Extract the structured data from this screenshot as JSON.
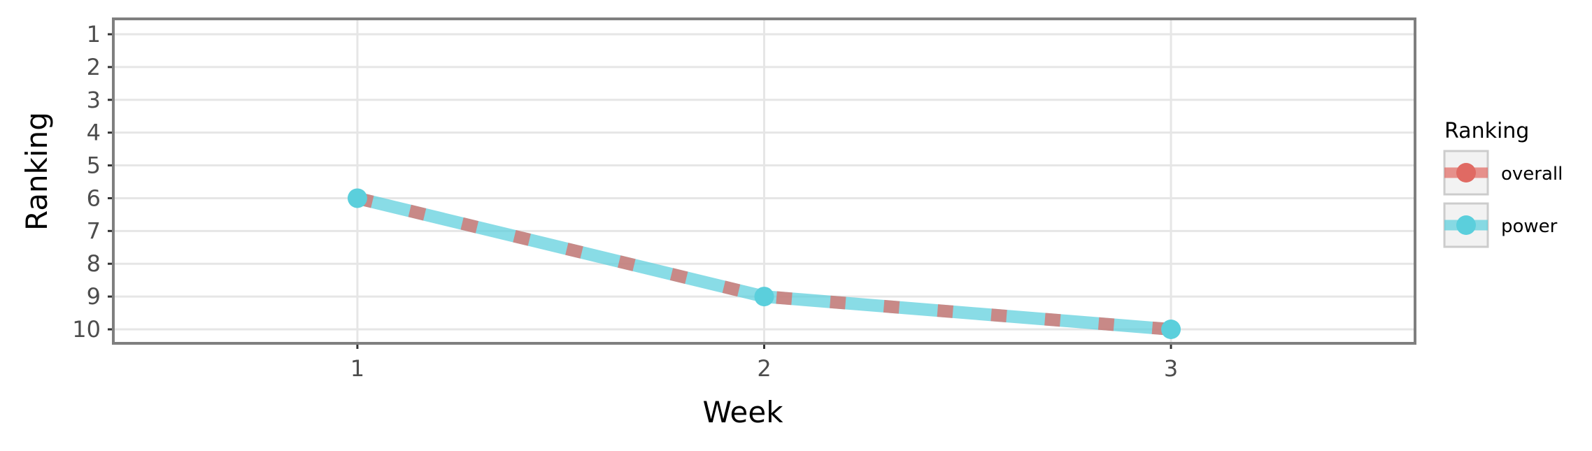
{
  "chart_data": {
    "type": "line",
    "title": "",
    "xlabel": "Week",
    "ylabel": "Ranking",
    "x": [
      1,
      2,
      3
    ],
    "x_ticks": [
      "1",
      "2",
      "3"
    ],
    "xlim": [
      0.4,
      3.6
    ],
    "y_ticks": [
      "1",
      "2",
      "3",
      "4",
      "5",
      "6",
      "7",
      "8",
      "9",
      "10"
    ],
    "ylim": [
      1,
      10
    ],
    "y_reversed": true,
    "grid": true,
    "legend": {
      "title": "Ranking",
      "position": "right"
    },
    "series": [
      {
        "name": "overall",
        "values": [
          6,
          9,
          10
        ],
        "color": "#E06A63",
        "linestyle": "dashed"
      },
      {
        "name": "power",
        "values": [
          6,
          9,
          10
        ],
        "color": "#5BCFDC",
        "linestyle": "solid"
      }
    ]
  }
}
